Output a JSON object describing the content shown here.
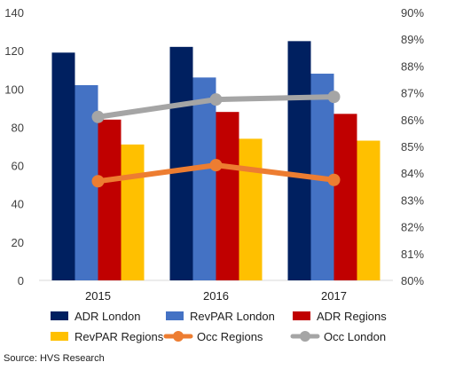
{
  "chart_data": {
    "type": "bar",
    "categories": [
      "2015",
      "2016",
      "2017"
    ],
    "left_axis": {
      "min": 0,
      "max": 140,
      "step": 20,
      "ticks": [
        "0",
        "20",
        "40",
        "60",
        "80",
        "100",
        "120",
        "140"
      ]
    },
    "right_axis": {
      "min": 80,
      "max": 90,
      "step": 1,
      "ticks": [
        "80%",
        "81%",
        "82%",
        "83%",
        "84%",
        "85%",
        "86%",
        "87%",
        "88%",
        "89%",
        "90%"
      ]
    },
    "bar_series": [
      {
        "name": "ADR London",
        "color": "#002060",
        "values": [
          119,
          122,
          125
        ]
      },
      {
        "name": "RevPAR London",
        "color": "#4472C4",
        "values": [
          102,
          106,
          108
        ]
      },
      {
        "name": "ADR Regions",
        "color": "#C00000",
        "values": [
          84,
          88,
          87
        ]
      },
      {
        "name": "RevPAR Regions",
        "color": "#FFC000",
        "values": [
          71,
          74,
          73
        ]
      }
    ],
    "line_series": [
      {
        "name": "Occ Regions",
        "color": "#ED7D31",
        "values": [
          83.7,
          84.3,
          83.75
        ]
      },
      {
        "name": "Occ London",
        "color": "#A5A5A5",
        "values": [
          86.1,
          86.75,
          86.85
        ]
      }
    ],
    "legend_position": "bottom",
    "grid": false
  },
  "source": "Source: HVS Research"
}
